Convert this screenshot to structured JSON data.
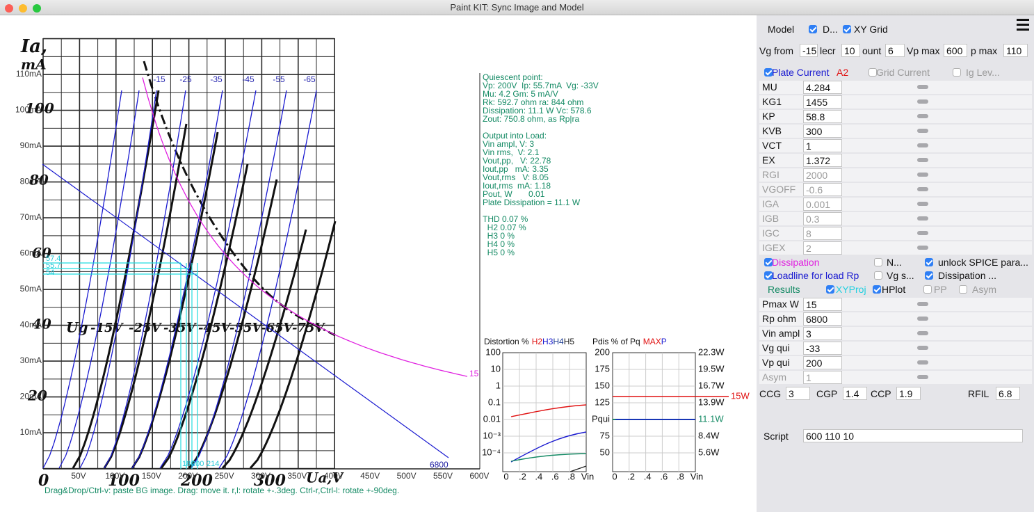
{
  "window": {
    "title": "Paint KIT: Sync Image and Model"
  },
  "plot": {
    "y_labels": [
      "110mA",
      "100mA",
      "90mA",
      "80mA",
      "70mA",
      "60mA",
      "50mA",
      "40mA",
      "30mA",
      "20mA",
      "10mA"
    ],
    "x_labels": [
      "50V",
      "100V",
      "150V",
      "200V",
      "250V",
      "300V",
      "350V",
      "400V",
      "450V",
      "500V",
      "550V",
      "600V"
    ],
    "scan_labels": [
      "Ia,",
      "mA",
      "100",
      "80",
      "60",
      "40",
      "20",
      "0",
      "100",
      "200",
      "300",
      "Ua,V",
      "Ug",
      "-15V",
      "-25V",
      "-35V",
      "-45V",
      "-55V",
      "-65V",
      "-75V"
    ],
    "curve_labels": [
      "-15",
      "-25",
      "-35",
      "-45",
      "-55",
      "-65"
    ],
    "dissipation_label": "15",
    "loadline_label": "6800",
    "projection_labels": [
      "57.4",
      "55.7",
      "54",
      "186",
      "200",
      "214"
    ],
    "quiescent": [
      "Quiescent point:",
      "Vp: 200V  Ip: 55.7mA  Vg: -33V",
      "Mu: 4.2 Gm: 5 mA/V",
      "Rk: 592.7 ohm ra: 844 ohm",
      "Dissipation: 11.1 W Vc: 578.6",
      "Zout: 750.8 ohm, as Rp|ra"
    ],
    "output": [
      "Output into Load:",
      "Vin ampl, V: 3",
      "Vin rms,  V: 2.1",
      "Vout,pp,   V: 22.78",
      "Iout,pp   mA: 3.35",
      "Vout,rms   V: 8.05",
      "Iout,rms  mA: 1.18",
      "Pout, W       0.01",
      "Plate Dissipation = 11.1 W"
    ],
    "thd": [
      "THD 0.07 %",
      "  H2 0.07 %",
      "  H3 0 %",
      "  H4 0 %",
      "  H5 0 %"
    ],
    "hint": "Drag&Drop/Ctrl-v: paste BG image. Drag: move it. r,l: rotate +-.3deg. Ctrl-r,Ctrl-l: rotate +-90deg."
  },
  "distortion": {
    "title": "Distortion %",
    "legend": [
      "H2",
      "H3",
      "H4",
      "H5"
    ],
    "y_labels": [
      "100",
      "10",
      "1",
      "0.1",
      "0.01",
      "10⁻³",
      "10⁻⁴"
    ],
    "x_labels": [
      "0",
      ".2",
      ".4",
      ".6",
      ".8",
      "Vin"
    ]
  },
  "pdis": {
    "title": "Pdis % of Pq",
    "legend": [
      "MAX",
      "P"
    ],
    "y_labels": [
      "200",
      "175",
      "150",
      "125",
      "Pqui",
      "75",
      "50"
    ],
    "right_labels": [
      "22.3W",
      "19.5W",
      "16.7W",
      "13.9W",
      "11.1W",
      "8.4W",
      "5.6W"
    ],
    "max_label": "15W",
    "x_labels": [
      "0",
      ".2",
      ".4",
      ".6",
      ".8",
      "Vin"
    ]
  },
  "panel": {
    "model_label": "Model",
    "top_checks": [
      {
        "label": "D...",
        "checked": true
      },
      {
        "label": "XY Grid",
        "checked": true
      }
    ],
    "range_fields": [
      {
        "label": "Vg from",
        "value": -15
      },
      {
        "label": "lecr",
        "value": 10
      },
      {
        "label": "ount",
        "value": 6
      },
      {
        "label": "Vp max",
        "value": 600
      },
      {
        "label": "p max",
        "value": 110
      }
    ],
    "curve_checks": [
      {
        "label": "Plate Current",
        "checked": true
      },
      {
        "label": "Grid Current",
        "checked": false
      },
      {
        "label": "Ig Lev...",
        "checked": false
      }
    ],
    "curve_tag": "A2",
    "params": [
      {
        "name": "MU",
        "value": 4.284,
        "enabled": true
      },
      {
        "name": "KG1",
        "value": 1455,
        "enabled": true
      },
      {
        "name": "KP",
        "value": 58.8,
        "enabled": true
      },
      {
        "name": "KVB",
        "value": 300,
        "enabled": true
      },
      {
        "name": "VCT",
        "value": 1,
        "enabled": true
      },
      {
        "name": "EX",
        "value": 1.372,
        "enabled": true
      },
      {
        "name": "RGI",
        "value": 2000,
        "enabled": false
      },
      {
        "name": "VGOFF",
        "value": -0.6,
        "enabled": false
      },
      {
        "name": "IGA",
        "value": 0.001,
        "enabled": false
      },
      {
        "name": "IGB",
        "value": 0.3,
        "enabled": false
      },
      {
        "name": "IGC",
        "value": 8,
        "enabled": false
      },
      {
        "name": "IGEX",
        "value": 2,
        "enabled": false
      }
    ],
    "options": [
      {
        "label": "Dissipation",
        "checked": true
      },
      {
        "label": "N...",
        "checked": false
      },
      {
        "label": "unlock SPICE para...",
        "checked": true
      },
      {
        "label": "Loadline for load Rp",
        "checked": true
      },
      {
        "label": "Vg s...",
        "checked": false
      },
      {
        "label": "Dissipation ...",
        "checked": true
      }
    ],
    "results_label": "Results",
    "result_checks": [
      {
        "label": "XYProj",
        "checked": true
      },
      {
        "label": "HPlot",
        "checked": true
      },
      {
        "label": "PP",
        "checked": false
      },
      {
        "label": "Asym",
        "checked": false
      }
    ],
    "results": [
      {
        "name": "Pmax W",
        "value": 15,
        "enabled": true
      },
      {
        "name": "Rp ohm",
        "value": 6800,
        "enabled": true
      },
      {
        "name": "Vin ampl",
        "value": 3,
        "enabled": true
      },
      {
        "name": "Vg qui",
        "value": -33,
        "enabled": true
      },
      {
        "name": "Vp qui",
        "value": 200,
        "enabled": true
      },
      {
        "name": "Asym",
        "value": 1,
        "enabled": false
      }
    ],
    "caps": [
      {
        "name": "CCG",
        "value": 3
      },
      {
        "name": "CGP",
        "value": 1.4
      },
      {
        "name": "CCP",
        "value": 1.9
      },
      {
        "name": "RFIL",
        "value": 6.8
      }
    ],
    "script": {
      "label": "Script",
      "value": "600 110 10"
    }
  }
}
